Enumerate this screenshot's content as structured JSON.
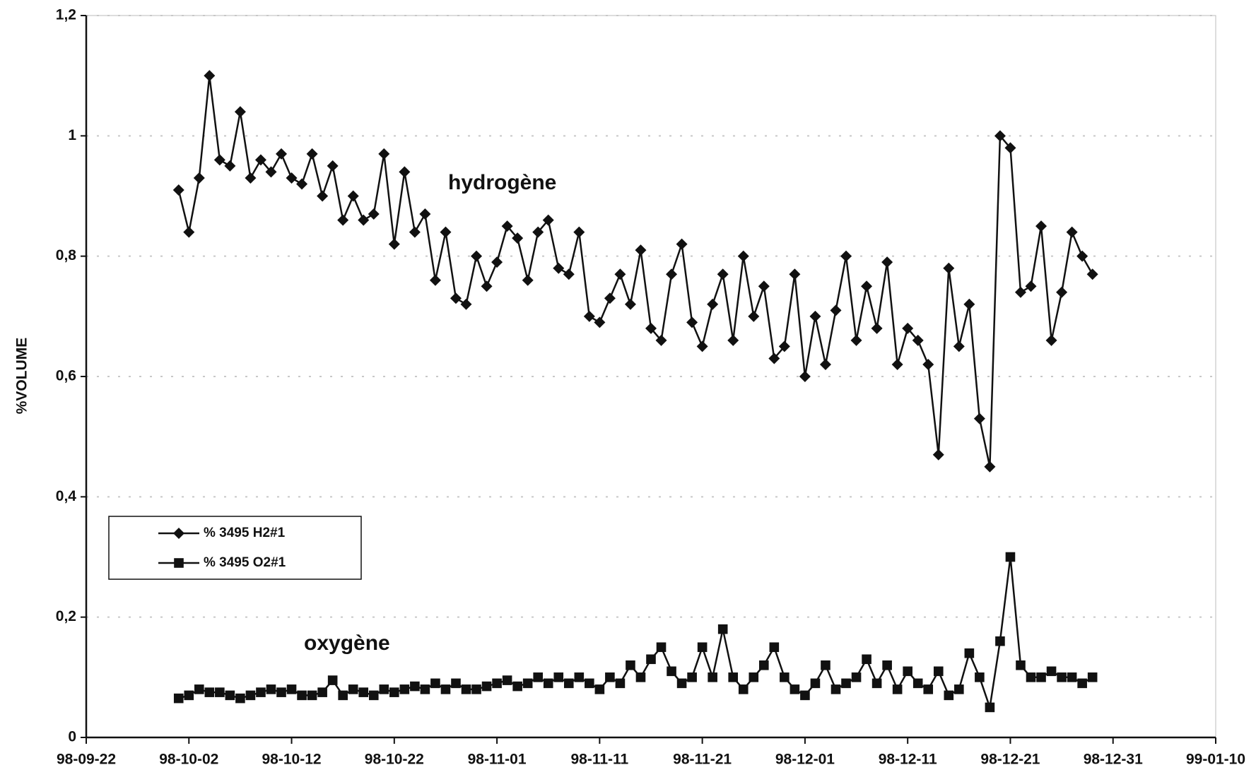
{
  "chart_data": {
    "type": "line",
    "y_label": "%VOLUME",
    "annotations": [
      "hydrogène",
      "oxygène"
    ],
    "legend": "lower-left",
    "grid": true,
    "xlim": [
      "98-09-22",
      "99-01-10"
    ],
    "xticks": [
      "98-09-22",
      "98-10-02",
      "98-10-12",
      "98-10-22",
      "98-11-01",
      "98-11-11",
      "98-11-21",
      "98-12-01",
      "98-12-11",
      "98-12-21",
      "98-12-31",
      "99-01-10"
    ],
    "ylim": [
      0,
      1.2
    ],
    "yticks": [
      0,
      {
        "value": 0.2,
        "label": "0,2"
      },
      {
        "value": 0.4,
        "label": "0,4"
      },
      {
        "value": 0.6,
        "label": "0,6"
      },
      {
        "value": 0.8,
        "label": "0,8"
      },
      1,
      {
        "value": 1.2,
        "label": "1,2"
      }
    ],
    "x": [
      "98-10-01",
      "98-10-02",
      "98-10-03",
      "98-10-04",
      "98-10-05",
      "98-10-06",
      "98-10-07",
      "98-10-08",
      "98-10-09",
      "98-10-10",
      "98-10-11",
      "98-10-12",
      "98-10-13",
      "98-10-14",
      "98-10-15",
      "98-10-16",
      "98-10-17",
      "98-10-18",
      "98-10-19",
      "98-10-20",
      "98-10-21",
      "98-10-22",
      "98-10-23",
      "98-10-24",
      "98-10-25",
      "98-10-26",
      "98-10-27",
      "98-10-28",
      "98-10-29",
      "98-10-30",
      "98-10-31",
      "98-11-01",
      "98-11-02",
      "98-11-03",
      "98-11-04",
      "98-11-05",
      "98-11-06",
      "98-11-07",
      "98-11-08",
      "98-11-09",
      "98-11-10",
      "98-11-11",
      "98-11-12",
      "98-11-13",
      "98-11-14",
      "98-11-15",
      "98-11-16",
      "98-11-17",
      "98-11-18",
      "98-11-19",
      "98-11-20",
      "98-11-21",
      "98-11-22",
      "98-11-23",
      "98-11-24",
      "98-11-25",
      "98-11-26",
      "98-11-27",
      "98-11-28",
      "98-11-29",
      "98-11-30",
      "98-12-01",
      "98-12-02",
      "98-12-03",
      "98-12-04",
      "98-12-05",
      "98-12-06",
      "98-12-07",
      "98-12-08",
      "98-12-09",
      "98-12-10",
      "98-12-11",
      "98-12-12",
      "98-12-13",
      "98-12-14",
      "98-12-15",
      "98-12-16",
      "98-12-17",
      "98-12-18",
      "98-12-19",
      "98-12-20",
      "98-12-21",
      "98-12-22",
      "98-12-23",
      "98-12-24",
      "98-12-25",
      "98-12-26",
      "98-12-27",
      "98-12-28",
      "98-12-29"
    ],
    "series": [
      {
        "name": "% 3495 H2#1",
        "color": "#111111",
        "marker": "diamond",
        "values": [
          0.91,
          0.84,
          0.93,
          1.1,
          0.96,
          0.95,
          1.04,
          0.93,
          0.96,
          0.94,
          0.97,
          0.93,
          0.92,
          0.97,
          0.9,
          0.95,
          0.86,
          0.9,
          0.86,
          0.87,
          0.97,
          0.82,
          0.94,
          0.84,
          0.87,
          0.76,
          0.84,
          0.73,
          0.72,
          0.8,
          0.75,
          0.79,
          0.85,
          0.83,
          0.76,
          0.84,
          0.86,
          0.78,
          0.77,
          0.84,
          0.7,
          0.69,
          0.73,
          0.77,
          0.72,
          0.81,
          0.68,
          0.66,
          0.77,
          0.82,
          0.69,
          0.65,
          0.72,
          0.77,
          0.66,
          0.8,
          0.7,
          0.75,
          0.63,
          0.65,
          0.77,
          0.6,
          0.7,
          0.62,
          0.71,
          0.8,
          0.66,
          0.75,
          0.68,
          0.79,
          0.62,
          0.68,
          0.66,
          0.62,
          0.47,
          0.78,
          0.65,
          0.72,
          0.53,
          0.45,
          1.0,
          0.98,
          0.74,
          0.75,
          0.85,
          0.66,
          0.74,
          0.84,
          0.8,
          0.77
        ]
      },
      {
        "name": "% 3495 O2#1",
        "color": "#111111",
        "marker": "square",
        "values": [
          0.065,
          0.07,
          0.08,
          0.075,
          0.075,
          0.07,
          0.065,
          0.07,
          0.075,
          0.08,
          0.075,
          0.08,
          0.07,
          0.07,
          0.075,
          0.095,
          0.07,
          0.08,
          0.075,
          0.07,
          0.08,
          0.075,
          0.08,
          0.085,
          0.08,
          0.09,
          0.08,
          0.09,
          0.08,
          0.08,
          0.085,
          0.09,
          0.095,
          0.085,
          0.09,
          0.1,
          0.09,
          0.1,
          0.09,
          0.1,
          0.09,
          0.08,
          0.1,
          0.09,
          0.12,
          0.1,
          0.13,
          0.15,
          0.11,
          0.09,
          0.1,
          0.15,
          0.1,
          0.18,
          0.1,
          0.08,
          0.1,
          0.12,
          0.15,
          0.1,
          0.08,
          0.07,
          0.09,
          0.12,
          0.08,
          0.09,
          0.1,
          0.13,
          0.09,
          0.12,
          0.08,
          0.11,
          0.09,
          0.08,
          0.11,
          0.07,
          0.08,
          0.14,
          0.1,
          0.05,
          0.16,
          0.3,
          0.12,
          0.1,
          0.1,
          0.11,
          0.1,
          0.1,
          0.09,
          0.1
        ]
      }
    ]
  }
}
